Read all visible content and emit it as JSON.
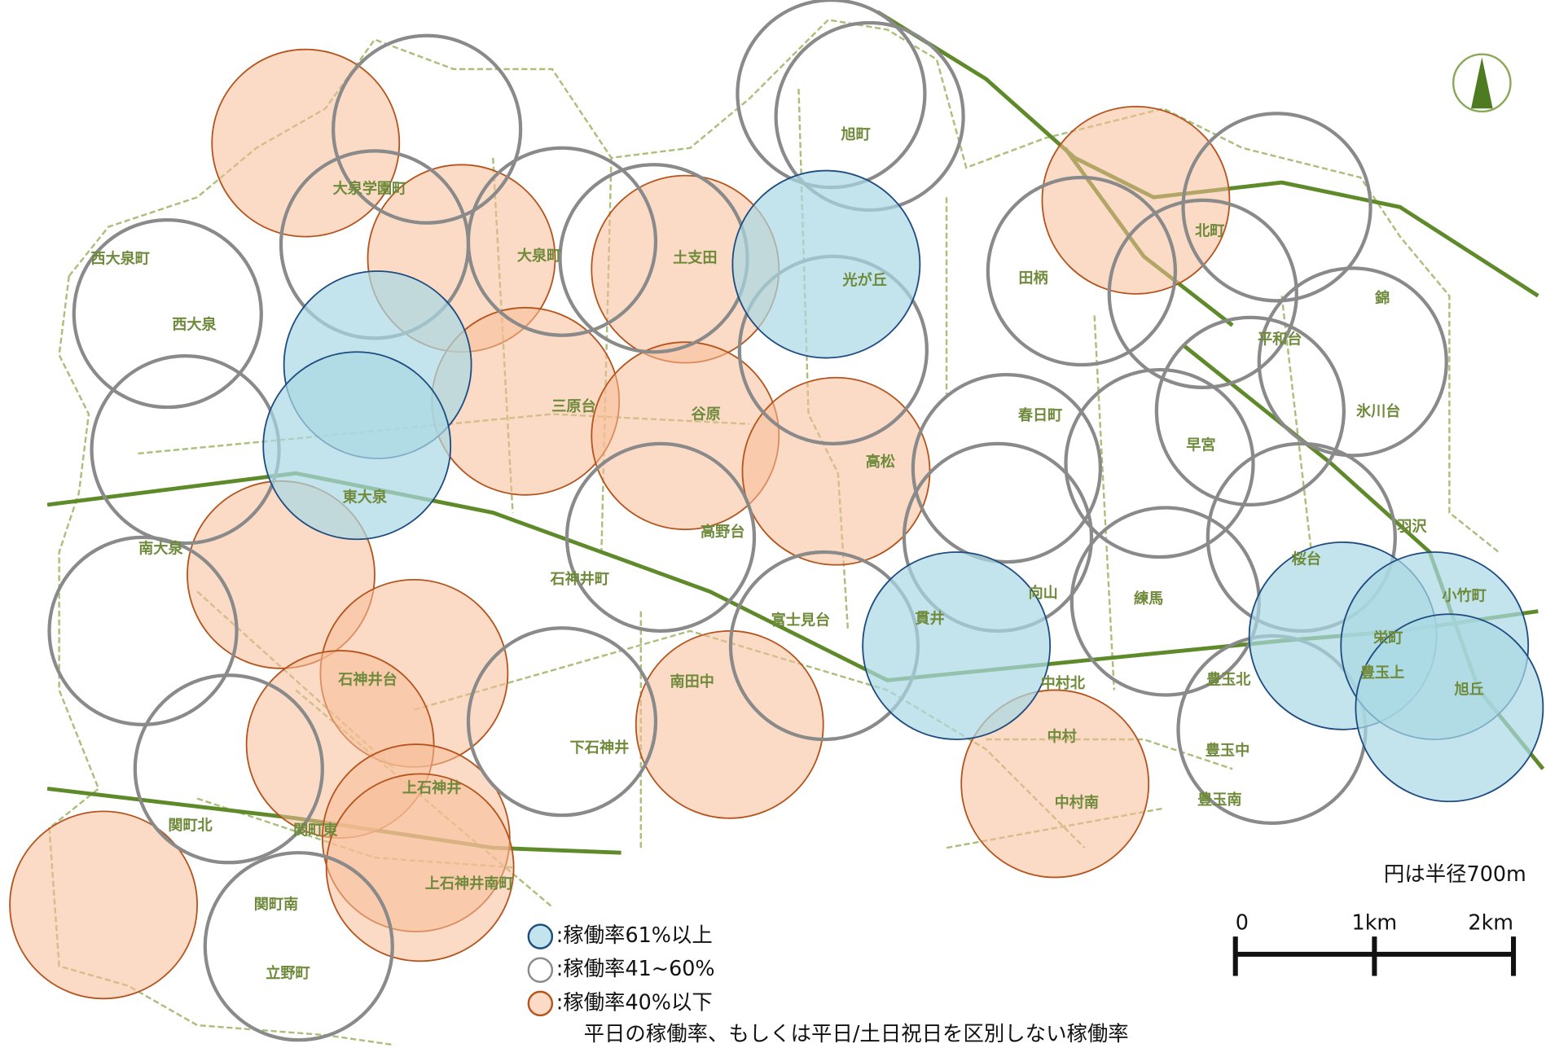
{
  "map": {
    "places": [
      "大泉学園町",
      "西大泉町",
      "西大泉",
      "大泉町",
      "土支田",
      "光が丘",
      "旭町",
      "田柄",
      "北町",
      "錦",
      "平和台",
      "氷川台",
      "春日町",
      "早宮",
      "三原台",
      "谷原",
      "高松",
      "東大泉",
      "南大泉",
      "高野台",
      "石神井町",
      "富士見台",
      "向山",
      "練馬",
      "羽沢",
      "桜台",
      "小竹町",
      "栄町",
      "豊玉北",
      "豊玉上",
      "旭丘",
      "石神井台",
      "南田中",
      "下石神井",
      "中村北",
      "中村",
      "中村南",
      "豊玉中",
      "豊玉南",
      "上石神井",
      "関町北",
      "関町東",
      "上石神井南町",
      "関町南",
      "立野町",
      "貫井"
    ],
    "legend": [
      ":稼働率61%以上",
      ":稼働率41~60%",
      ":稼働率40%以下"
    ],
    "note": "平日の稼働率、もしくは平日/土日祝日を区別しない稼働率",
    "scale": {
      "caption": "円は半径700m",
      "ticks": [
        "0",
        "1km",
        "2km"
      ]
    }
  }
}
